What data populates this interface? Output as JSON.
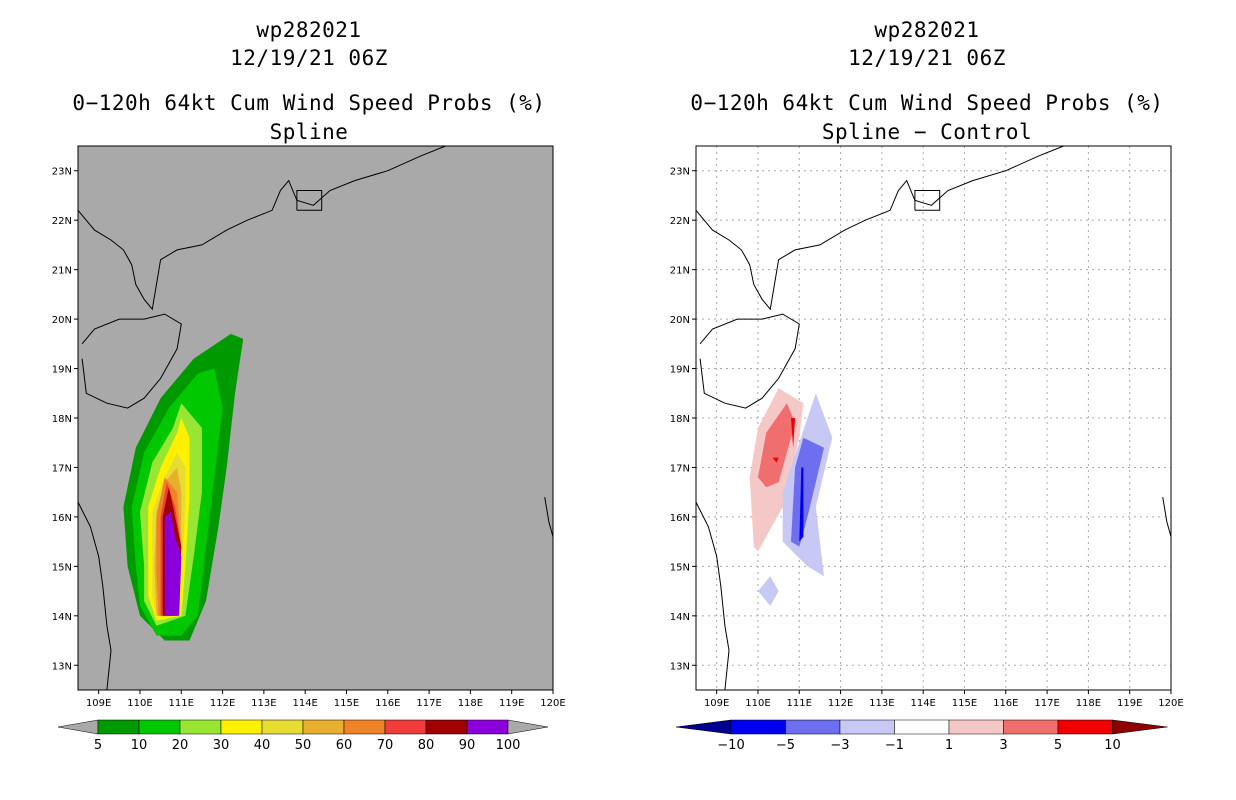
{
  "panels": [
    {
      "id": "left",
      "title_line1": "wp282021",
      "title_line2": "12/19/21 06Z",
      "title_line3": "0−120h 64kt Cum Wind Speed Probs (%)",
      "title_line4": "Spline"
    },
    {
      "id": "right",
      "title_line1": "wp282021",
      "title_line2": "12/19/21 06Z",
      "title_line3": "0−120h 64kt Cum Wind Speed Probs (%)",
      "title_line4": "Spline − Control"
    }
  ],
  "chart_data": [
    {
      "type": "filled-contour-map",
      "title": "0-120h 64kt Cum Wind Speed Probs (%) Spline",
      "storm": "wp282021",
      "valid": "12/19/21 06Z",
      "units": "%",
      "x_range": [
        108.5,
        120.0
      ],
      "y_range": [
        12.5,
        23.5
      ],
      "x_ticks": [
        "109E",
        "110E",
        "111E",
        "112E",
        "113E",
        "114E",
        "115E",
        "116E",
        "117E",
        "118E",
        "119E",
        "120E"
      ],
      "y_ticks": [
        "13N",
        "14N",
        "15N",
        "16N",
        "17N",
        "18N",
        "19N",
        "20N",
        "21N",
        "22N",
        "23N"
      ],
      "background_color": "#a9a9a9",
      "colorbar": {
        "labels": [
          "5",
          "10",
          "20",
          "30",
          "40",
          "50",
          "60",
          "70",
          "80",
          "90",
          "100"
        ],
        "colors": [
          "#009900",
          "#00c800",
          "#99e632",
          "#fff000",
          "#e6dc32",
          "#e6af2d",
          "#f08228",
          "#f03c3c",
          "#a00000",
          "#8c00dc"
        ]
      },
      "contours": [
        {
          "level": 5,
          "color": "#009900",
          "points": [
            [
              109.7,
              15.0
            ],
            [
              109.6,
              16.2
            ],
            [
              109.9,
              17.4
            ],
            [
              110.5,
              18.4
            ],
            [
              111.3,
              19.2
            ],
            [
              112.2,
              19.7
            ],
            [
              112.5,
              19.6
            ],
            [
              112.3,
              18.5
            ],
            [
              112.1,
              17.0
            ],
            [
              111.9,
              15.8
            ],
            [
              111.6,
              14.3
            ],
            [
              111.2,
              13.5
            ],
            [
              110.6,
              13.5
            ],
            [
              110.0,
              14.0
            ]
          ]
        },
        {
          "level": 10,
          "color": "#00c800",
          "points": [
            [
              109.9,
              15.0
            ],
            [
              109.8,
              16.2
            ],
            [
              110.1,
              17.3
            ],
            [
              110.7,
              18.2
            ],
            [
              111.4,
              18.9
            ],
            [
              111.8,
              19.0
            ],
            [
              112.0,
              18.2
            ],
            [
              111.8,
              16.8
            ],
            [
              111.6,
              15.4
            ],
            [
              111.4,
              14.0
            ],
            [
              111.0,
              13.6
            ],
            [
              110.4,
              13.6
            ],
            [
              110.0,
              14.2
            ]
          ]
        },
        {
          "level": 20,
          "color": "#99e632",
          "points": [
            [
              110.1,
              15.0
            ],
            [
              110.0,
              16.1
            ],
            [
              110.3,
              17.1
            ],
            [
              110.8,
              17.8
            ],
            [
              111.0,
              18.3
            ],
            [
              111.5,
              17.8
            ],
            [
              111.5,
              16.5
            ],
            [
              111.3,
              15.2
            ],
            [
              111.1,
              14.0
            ],
            [
              110.4,
              13.8
            ],
            [
              110.1,
              14.3
            ]
          ]
        },
        {
          "level": 30,
          "color": "#fff000",
          "points": [
            [
              110.2,
              15.0
            ],
            [
              110.2,
              16.2
            ],
            [
              110.5,
              17.0
            ],
            [
              110.9,
              17.7
            ],
            [
              111.0,
              18.0
            ],
            [
              111.2,
              17.6
            ],
            [
              111.2,
              16.4
            ],
            [
              111.1,
              15.0
            ],
            [
              111.0,
              14.0
            ],
            [
              110.4,
              13.9
            ],
            [
              110.2,
              14.4
            ]
          ]
        },
        {
          "level": 40,
          "color": "#e6dc32",
          "points": [
            [
              110.3,
              15.0
            ],
            [
              110.3,
              16.1
            ],
            [
              110.6,
              16.8
            ],
            [
              110.9,
              17.3
            ],
            [
              111.1,
              17.0
            ],
            [
              111.1,
              16.2
            ],
            [
              111.0,
              14.8
            ],
            [
              110.9,
              14.0
            ],
            [
              110.4,
              14.0
            ],
            [
              110.3,
              14.4
            ]
          ]
        },
        {
          "level": 50,
          "color": "#e6af2d",
          "points": [
            [
              110.35,
              15.0
            ],
            [
              110.4,
              16.1
            ],
            [
              110.6,
              16.7
            ],
            [
              110.9,
              17.0
            ],
            [
              111.0,
              16.5
            ],
            [
              111.0,
              15.0
            ],
            [
              110.9,
              14.0
            ],
            [
              110.4,
              14.0
            ]
          ]
        },
        {
          "level": 60,
          "color": "#f08228",
          "points": [
            [
              110.4,
              14.9
            ],
            [
              110.4,
              16.0
            ],
            [
              110.6,
              16.8
            ],
            [
              110.9,
              16.5
            ],
            [
              111.0,
              15.2
            ],
            [
              110.9,
              14.0
            ],
            [
              110.45,
              14.0
            ]
          ]
        },
        {
          "level": 70,
          "color": "#f03c3c",
          "points": [
            [
              110.5,
              14.6
            ],
            [
              110.5,
              16.0
            ],
            [
              110.65,
              16.7
            ],
            [
              110.85,
              16.2
            ],
            [
              111.0,
              15.4
            ],
            [
              110.9,
              14.0
            ],
            [
              110.5,
              14.0
            ]
          ]
        },
        {
          "level": 80,
          "color": "#a00000",
          "points": [
            [
              110.55,
              14.6
            ],
            [
              110.55,
              16.0
            ],
            [
              110.7,
              16.6
            ],
            [
              110.85,
              16.0
            ],
            [
              111.0,
              15.4
            ],
            [
              110.9,
              14.0
            ],
            [
              110.55,
              14.0
            ]
          ]
        },
        {
          "level": 90,
          "color": "#8c00dc",
          "points": [
            [
              110.6,
              15.0
            ],
            [
              110.6,
              16.0
            ],
            [
              110.75,
              16.1
            ],
            [
              110.85,
              15.6
            ],
            [
              111.0,
              15.2
            ],
            [
              110.95,
              14.0
            ],
            [
              110.6,
              14.0
            ]
          ]
        }
      ]
    },
    {
      "type": "filled-contour-map",
      "title": "0-120h 64kt Cum Wind Speed Probs (%) Spline - Control",
      "storm": "wp282021",
      "valid": "12/19/21 06Z",
      "units": "%",
      "x_range": [
        108.5,
        120.0
      ],
      "y_range": [
        12.5,
        23.5
      ],
      "x_ticks": [
        "109E",
        "110E",
        "111E",
        "112E",
        "113E",
        "114E",
        "115E",
        "116E",
        "117E",
        "118E",
        "119E",
        "120E"
      ],
      "y_ticks": [
        "13N",
        "14N",
        "15N",
        "16N",
        "17N",
        "18N",
        "19N",
        "20N",
        "21N",
        "22N",
        "23N"
      ],
      "background_color": "#ffffff",
      "grid": true,
      "colorbar": {
        "labels": [
          "−10",
          "−5",
          "−3",
          "−1",
          "1",
          "3",
          "5",
          "10"
        ],
        "colors": [
          "#00008c",
          "#0000f0",
          "#6e6ef0",
          "#c8c8f5",
          "#ffffff",
          "#f5c8c8",
          "#f06e6e",
          "#f00000",
          "#8c0000"
        ]
      },
      "contours": [
        {
          "level": 1,
          "color": "#f5c8c8",
          "points": [
            [
              109.9,
              15.4
            ],
            [
              109.8,
              16.8
            ],
            [
              110.0,
              17.8
            ],
            [
              110.5,
              18.6
            ],
            [
              111.1,
              18.3
            ],
            [
              111.0,
              17.6
            ],
            [
              110.6,
              16.2
            ],
            [
              110.0,
              15.3
            ]
          ]
        },
        {
          "level": 3,
          "color": "#f06e6e",
          "points": [
            [
              110.0,
              16.8
            ],
            [
              110.2,
              17.7
            ],
            [
              110.7,
              18.3
            ],
            [
              110.9,
              17.9
            ],
            [
              110.5,
              16.7
            ],
            [
              110.2,
              16.6
            ]
          ]
        },
        {
          "level": 5,
          "color": "#f00000",
          "points": [
            [
              110.4,
              17.0
            ],
            [
              110.5,
              17.2
            ],
            [
              110.35,
              17.2
            ],
            [
              110.45,
              17.1
            ]
          ]
        },
        {
          "level": 5,
          "color": "#f00000",
          "points": [
            [
              110.85,
              17.4
            ],
            [
              110.9,
              18.0
            ],
            [
              110.8,
              18.0
            ]
          ]
        },
        {
          "level": -1,
          "color": "#c8c8f5",
          "points": [
            [
              110.6,
              15.5
            ],
            [
              110.6,
              16.5
            ],
            [
              110.8,
              17.0
            ],
            [
              111.4,
              18.5
            ],
            [
              111.8,
              17.6
            ],
            [
              111.4,
              16.2
            ],
            [
              111.6,
              14.8
            ],
            [
              111.2,
              15.0
            ]
          ]
        },
        {
          "level": -3,
          "color": "#6e6ef0",
          "points": [
            [
              110.8,
              15.5
            ],
            [
              110.9,
              17.0
            ],
            [
              111.1,
              17.6
            ],
            [
              111.6,
              17.4
            ],
            [
              111.2,
              16.0
            ],
            [
              111.0,
              15.4
            ]
          ]
        },
        {
          "level": -5,
          "color": "#0000f0",
          "points": [
            [
              111.0,
              15.5
            ],
            [
              111.05,
              17.0
            ],
            [
              111.1,
              17.0
            ],
            [
              111.1,
              15.6
            ]
          ]
        },
        {
          "level": -1,
          "color": "#c8c8f5",
          "points": [
            [
              110.0,
              14.5
            ],
            [
              110.3,
              14.8
            ],
            [
              110.5,
              14.5
            ],
            [
              110.3,
              14.2
            ]
          ]
        }
      ]
    }
  ]
}
